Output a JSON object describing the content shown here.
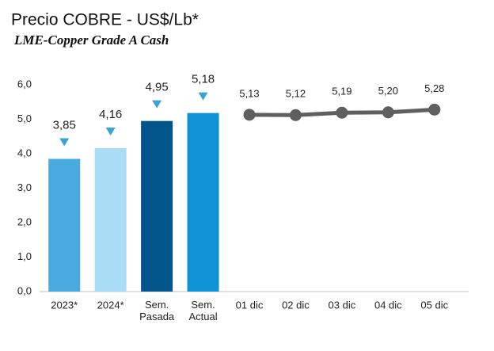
{
  "chart_data": {
    "type": "combo",
    "title": "Precio COBRE - US$/Lb*",
    "subtitle": "LME-Copper Grade A Cash",
    "categories": [
      "2023*",
      "2024*",
      "Sem.\nPasada",
      "Sem.\nActual",
      "01 dic",
      "02 dic",
      "03 dic",
      "04 dic",
      "05 dic"
    ],
    "series": [
      {
        "type": "bar",
        "values": [
          3.85,
          4.16,
          4.95,
          5.18,
          null,
          null,
          null,
          null,
          null
        ],
        "value_labels": [
          "3,85",
          "4,16",
          "4,95",
          "5,18",
          null,
          null,
          null,
          null,
          null
        ],
        "colors": [
          "#48aadf",
          "#a9ddf6",
          "#02558b",
          "#0f93d6",
          null,
          null,
          null,
          null,
          null
        ]
      },
      {
        "type": "line",
        "color": "#5f5f5f",
        "values": [
          null,
          null,
          null,
          null,
          5.13,
          5.12,
          5.19,
          5.2,
          5.28
        ],
        "value_labels": [
          null,
          null,
          null,
          null,
          "5,13",
          "5,12",
          "5,19",
          "5,20",
          "5,28"
        ]
      }
    ],
    "ylim": [
      0,
      6
    ],
    "yticks": [
      {
        "value": 0,
        "label": "0,0"
      },
      {
        "value": 1,
        "label": "1,0"
      },
      {
        "value": 2,
        "label": "2,0"
      },
      {
        "value": 3,
        "label": "3,0"
      },
      {
        "value": 4,
        "label": "4,0"
      },
      {
        "value": 5,
        "label": "5,0"
      },
      {
        "value": 6,
        "label": "6,0"
      }
    ],
    "marker_color": "#3aa3d6"
  }
}
